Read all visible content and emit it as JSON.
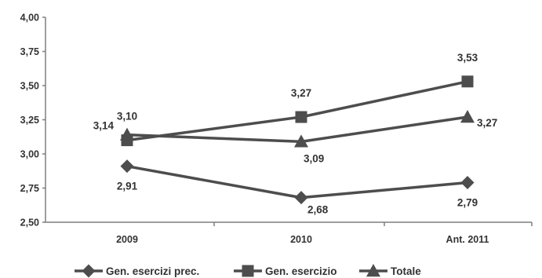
{
  "colors": {
    "series": "#4d4d4d",
    "axis": "#7f7f7f",
    "text": "#333333"
  },
  "chart_data": {
    "type": "line",
    "categories": [
      "2009",
      "2010",
      "Ant. 2011"
    ],
    "ylim": [
      2.5,
      4.0
    ],
    "ytick_values": [
      2.5,
      2.75,
      3.0,
      3.25,
      3.5,
      3.75,
      4.0
    ],
    "ytick_labels": [
      "2,50",
      "2,75",
      "3,00",
      "3,25",
      "3,50",
      "3,75",
      "4,00"
    ],
    "grid": false,
    "legend_position": "bottom",
    "series": [
      {
        "name": "Gen. esercizi prec.",
        "marker": "diamond",
        "values": [
          2.91,
          2.68,
          2.79
        ],
        "labels": [
          "2,91",
          "2,68",
          "2,79"
        ]
      },
      {
        "name": "Gen. esercizio",
        "marker": "square",
        "values": [
          3.1,
          3.27,
          3.53
        ],
        "labels": [
          "3,10",
          "3,27",
          "3,53"
        ]
      },
      {
        "name": "Totale",
        "marker": "triangle",
        "values": [
          3.14,
          3.09,
          3.27
        ],
        "labels": [
          "3,14",
          "3,09",
          "3,27"
        ]
      }
    ]
  }
}
